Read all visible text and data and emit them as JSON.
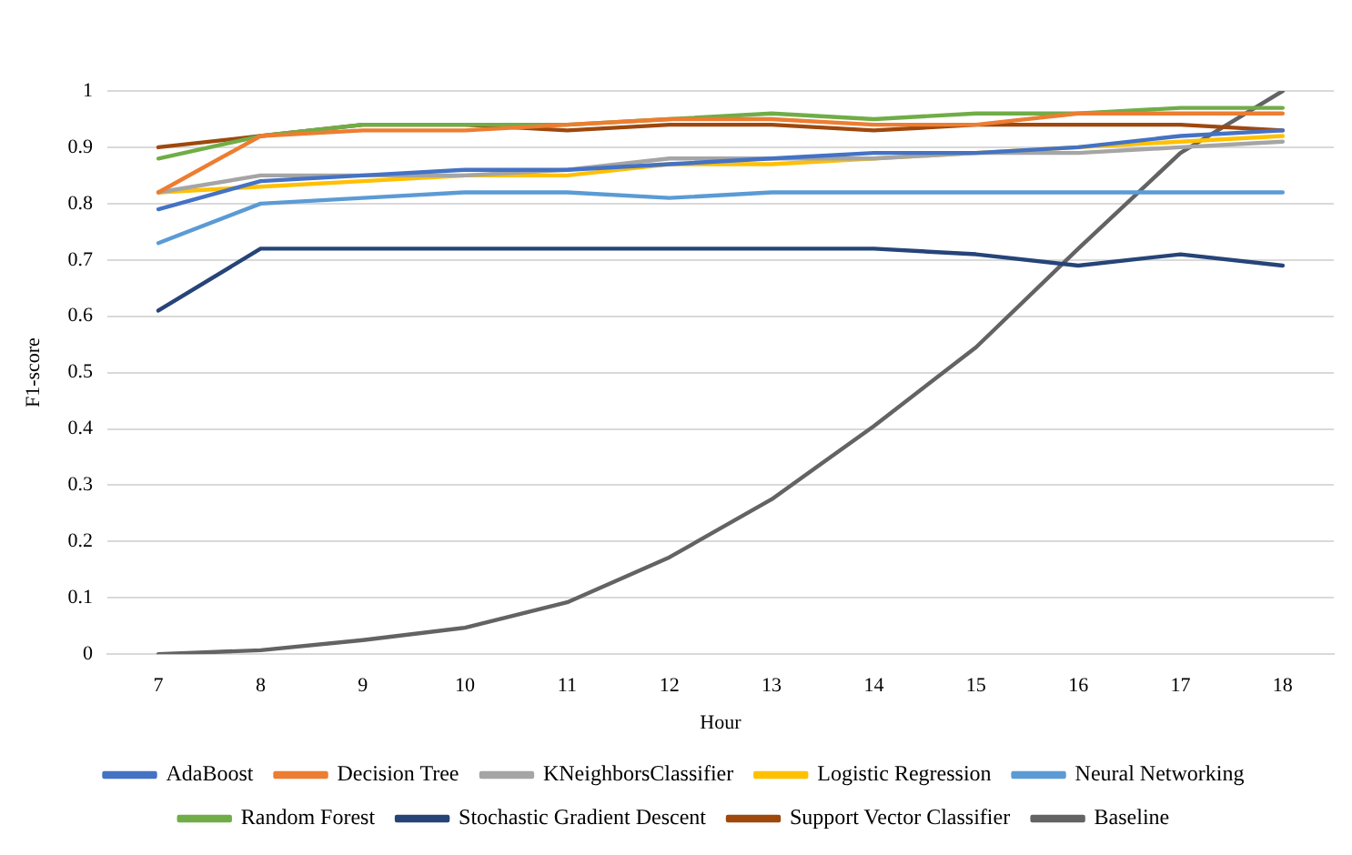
{
  "chart_data": {
    "type": "line",
    "xlabel": "Hour",
    "ylabel": "F1-score",
    "categories": [
      "7",
      "8",
      "9",
      "10",
      "11",
      "12",
      "13",
      "14",
      "15",
      "16",
      "17",
      "18"
    ],
    "ylim": [
      0,
      1
    ],
    "yticks": [
      0,
      0.1,
      0.2,
      0.3,
      0.4,
      0.5,
      0.6,
      0.7,
      0.8,
      0.9,
      1
    ],
    "grid": "y",
    "legend": "bottom",
    "marker": "none",
    "line_style": "solid",
    "series": [
      {
        "name": "AdaBoost",
        "color": "#4472c4",
        "values": [
          0.79,
          0.84,
          0.85,
          0.86,
          0.86,
          0.87,
          0.88,
          0.89,
          0.89,
          0.9,
          0.92,
          0.93
        ]
      },
      {
        "name": "Decision Tree",
        "color": "#ed7d31",
        "values": [
          0.82,
          0.92,
          0.93,
          0.93,
          0.94,
          0.95,
          0.95,
          0.94,
          0.94,
          0.96,
          0.96,
          0.96
        ]
      },
      {
        "name": "KNeighborsClassifier",
        "color": "#a5a5a5",
        "values": [
          0.82,
          0.85,
          0.85,
          0.85,
          0.86,
          0.88,
          0.88,
          0.88,
          0.89,
          0.89,
          0.9,
          0.91
        ]
      },
      {
        "name": "Logistic Regression",
        "color": "#ffc000",
        "values": [
          0.82,
          0.83,
          0.84,
          0.85,
          0.85,
          0.87,
          0.87,
          0.88,
          0.89,
          0.9,
          0.91,
          0.92
        ]
      },
      {
        "name": "Neural Networking",
        "color": "#5b9bd5",
        "values": [
          0.73,
          0.8,
          0.81,
          0.82,
          0.82,
          0.81,
          0.82,
          0.82,
          0.82,
          0.82,
          0.82,
          0.82
        ]
      },
      {
        "name": "Random Forest",
        "color": "#70ad47",
        "values": [
          0.88,
          0.92,
          0.94,
          0.94,
          0.94,
          0.95,
          0.96,
          0.95,
          0.96,
          0.96,
          0.97,
          0.97
        ]
      },
      {
        "name": "Stochastic Gradient Descent",
        "color": "#264478",
        "values": [
          0.61,
          0.72,
          0.72,
          0.72,
          0.72,
          0.72,
          0.72,
          0.72,
          0.71,
          0.69,
          0.71,
          0.69
        ]
      },
      {
        "name": "Support Vector Classifier",
        "color": "#9e480e",
        "values": [
          0.9,
          0.92,
          0.94,
          0.94,
          0.93,
          0.94,
          0.94,
          0.93,
          0.94,
          0.94,
          0.94,
          0.93
        ]
      },
      {
        "name": "Baseline",
        "color": "#636363",
        "values": [
          0,
          0.007,
          0.025,
          0.047,
          0.092,
          0.172,
          0.275,
          0.405,
          0.545,
          0.72,
          0.89,
          1
        ]
      }
    ]
  }
}
